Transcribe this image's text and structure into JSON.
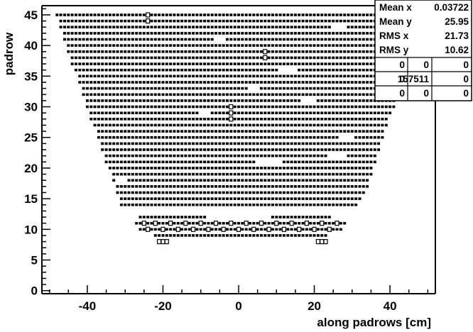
{
  "chart_data": {
    "type": "scatter",
    "title": "",
    "xlabel": "along padrows [cm]",
    "ylabel": "padrow",
    "xlim": [
      -52,
      52
    ],
    "ylim": [
      -0.5,
      46.5
    ],
    "x_ticks": [
      -40,
      -20,
      0,
      20,
      40
    ],
    "y_ticks": [
      0,
      5,
      10,
      15,
      20,
      25,
      30,
      35,
      40,
      45
    ],
    "marker": "small filled square",
    "grid": false,
    "stats_box": {
      "position": "top-right",
      "rows": [
        {
          "label": "Mean x",
          "value": "0.03722"
        },
        {
          "label": "Mean y",
          "value": "25.95"
        },
        {
          "label": "RMS x",
          "value": "21.73"
        },
        {
          "label": "RMS y",
          "value": "10.62"
        }
      ],
      "grid": [
        [
          "0",
          "0",
          "0"
        ],
        [
          "0",
          "157511",
          "0"
        ],
        [
          "0",
          "0",
          "0"
        ]
      ]
    },
    "rows": [
      {
        "padrow": 9,
        "x_min": -22,
        "x_max": 23
      },
      {
        "padrow": 10,
        "x_min": -26,
        "x_max": 27
      },
      {
        "padrow": 11,
        "x_min": -27,
        "x_max": 28
      },
      {
        "padrow": 12,
        "x_min": -26,
        "x_max": 24
      },
      {
        "padrow": 14,
        "x_min": -31,
        "x_max": 31
      },
      {
        "padrow": 15,
        "x_min": -31,
        "x_max": 32
      },
      {
        "padrow": 16,
        "x_min": -32,
        "x_max": 33
      },
      {
        "padrow": 17,
        "x_min": -32,
        "x_max": 34
      },
      {
        "padrow": 18,
        "x_min": -33,
        "x_max": 34
      },
      {
        "padrow": 19,
        "x_min": -33,
        "x_max": 35
      },
      {
        "padrow": 20,
        "x_min": -34,
        "x_max": 35
      },
      {
        "padrow": 21,
        "x_min": -35,
        "x_max": 36
      },
      {
        "padrow": 22,
        "x_min": -35,
        "x_max": 36
      },
      {
        "padrow": 23,
        "x_min": -36,
        "x_max": 37
      },
      {
        "padrow": 24,
        "x_min": -36,
        "x_max": 37
      },
      {
        "padrow": 25,
        "x_min": -37,
        "x_max": 38
      },
      {
        "padrow": 26,
        "x_min": -37,
        "x_max": 38
      },
      {
        "padrow": 27,
        "x_min": -38,
        "x_max": 39
      },
      {
        "padrow": 28,
        "x_min": -39,
        "x_max": 39
      },
      {
        "padrow": 29,
        "x_min": -39,
        "x_max": 40
      },
      {
        "padrow": 30,
        "x_min": -40,
        "x_max": 41
      },
      {
        "padrow": 31,
        "x_min": -40,
        "x_max": 41
      },
      {
        "padrow": 32,
        "x_min": -41,
        "x_max": 42
      },
      {
        "padrow": 33,
        "x_min": -41,
        "x_max": 42
      },
      {
        "padrow": 34,
        "x_min": -42,
        "x_max": 43
      },
      {
        "padrow": 35,
        "x_min": -42,
        "x_max": 43
      },
      {
        "padrow": 36,
        "x_min": -43,
        "x_max": 44
      },
      {
        "padrow": 37,
        "x_min": -44,
        "x_max": 45
      },
      {
        "padrow": 38,
        "x_min": -44,
        "x_max": 45
      },
      {
        "padrow": 39,
        "x_min": -45,
        "x_max": 46
      },
      {
        "padrow": 40,
        "x_min": -45,
        "x_max": 46
      },
      {
        "padrow": 41,
        "x_min": -46,
        "x_max": 47
      },
      {
        "padrow": 42,
        "x_min": -46,
        "x_max": 47
      },
      {
        "padrow": 43,
        "x_min": -47,
        "x_max": 48
      },
      {
        "padrow": 44,
        "x_min": -47,
        "x_max": 48
      },
      {
        "padrow": 45,
        "x_min": -48,
        "x_max": 49
      }
    ],
    "gaps": [
      {
        "padrow": 12,
        "x_min": -8,
        "x_max": 8
      },
      {
        "padrow": 13,
        "x_min": -40,
        "x_max": 40
      },
      {
        "padrow": 18,
        "x_min": -32,
        "x_max": -30
      },
      {
        "padrow": 21,
        "x_min": 5,
        "x_max": 11
      },
      {
        "padrow": 22,
        "x_min": 24,
        "x_max": 28
      },
      {
        "padrow": 25,
        "x_min": 27,
        "x_max": 30
      },
      {
        "padrow": 29,
        "x_min": -10,
        "x_max": -8
      },
      {
        "padrow": 31,
        "x_min": 17,
        "x_max": 20
      },
      {
        "padrow": 33,
        "x_min": 3,
        "x_max": 5
      },
      {
        "padrow": 36,
        "x_min": 11,
        "x_max": 15
      },
      {
        "padrow": 41,
        "x_min": -6,
        "x_max": -4
      },
      {
        "padrow": 43,
        "x_min": 25,
        "x_max": 28
      }
    ],
    "hollow_points": [
      [
        -24,
        45
      ],
      [
        -24,
        44
      ],
      [
        7,
        39
      ],
      [
        7,
        38
      ],
      [
        -2,
        30
      ],
      [
        -2,
        29
      ],
      [
        -2,
        28
      ],
      [
        -21,
        8
      ],
      [
        -20,
        8
      ],
      [
        -19,
        8
      ],
      [
        21,
        8
      ],
      [
        22,
        8
      ],
      [
        23,
        8
      ],
      [
        -25,
        11
      ],
      [
        -22,
        11
      ],
      [
        -18,
        11
      ],
      [
        -14,
        11
      ],
      [
        -10,
        11
      ],
      [
        -6,
        11
      ],
      [
        -2,
        11
      ],
      [
        2,
        11
      ],
      [
        6,
        11
      ],
      [
        10,
        11
      ],
      [
        14,
        11
      ],
      [
        18,
        11
      ],
      [
        22,
        11
      ],
      [
        26,
        11
      ],
      [
        -24,
        10
      ],
      [
        -20,
        10
      ],
      [
        -16,
        10
      ],
      [
        -12,
        10
      ],
      [
        -8,
        10
      ],
      [
        -4,
        10
      ],
      [
        0,
        10
      ],
      [
        4,
        10
      ],
      [
        8,
        10
      ],
      [
        12,
        10
      ],
      [
        16,
        10
      ],
      [
        20,
        10
      ],
      [
        24,
        10
      ]
    ]
  }
}
